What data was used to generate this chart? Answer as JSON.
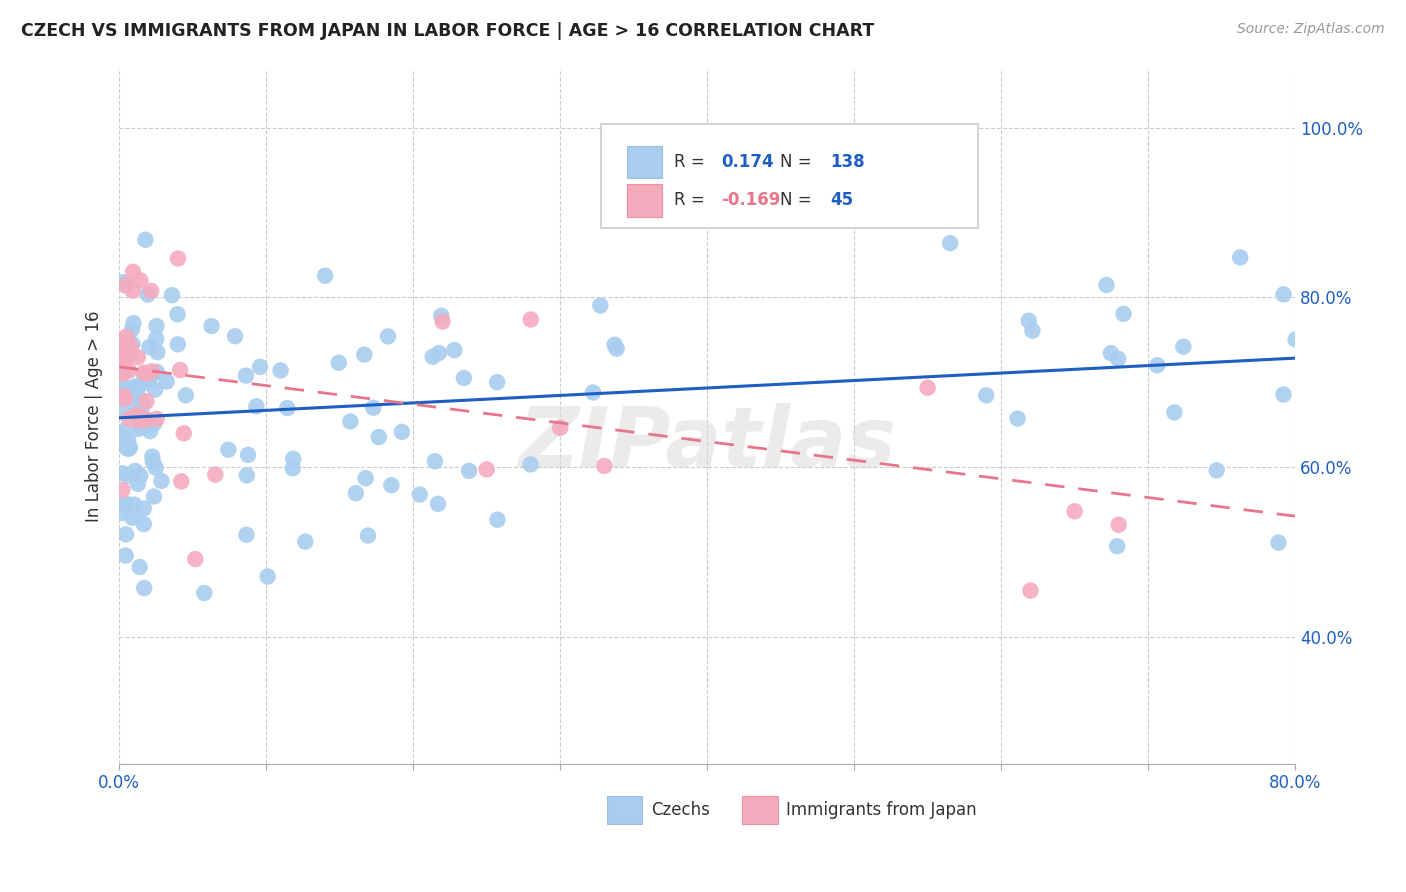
{
  "title": "CZECH VS IMMIGRANTS FROM JAPAN IN LABOR FORCE | AGE > 16 CORRELATION CHART",
  "source_text": "Source: ZipAtlas.com",
  "ylabel_text": "In Labor Force | Age > 16",
  "x_min": 0.0,
  "x_max": 0.8,
  "y_min": 0.25,
  "y_max": 1.07,
  "y_ticks": [
    0.4,
    0.6,
    0.8,
    1.0
  ],
  "y_tick_labels": [
    "40.0%",
    "60.0%",
    "80.0%",
    "100.0%"
  ],
  "blue_color": "#A8CDEF",
  "pink_color": "#F4ABBE",
  "blue_line_color": "#1F5FC4",
  "pink_line_color": "#E8768A",
  "R_blue": 0.174,
  "N_blue": 138,
  "R_pink": -0.169,
  "N_pink": 45,
  "blue_intercept": 0.658,
  "blue_slope": 0.088,
  "pink_intercept": 0.718,
  "pink_slope": -0.22,
  "watermark_text": "ZIPatlas",
  "figsize": [
    14.06,
    8.92
  ],
  "dpi": 100
}
